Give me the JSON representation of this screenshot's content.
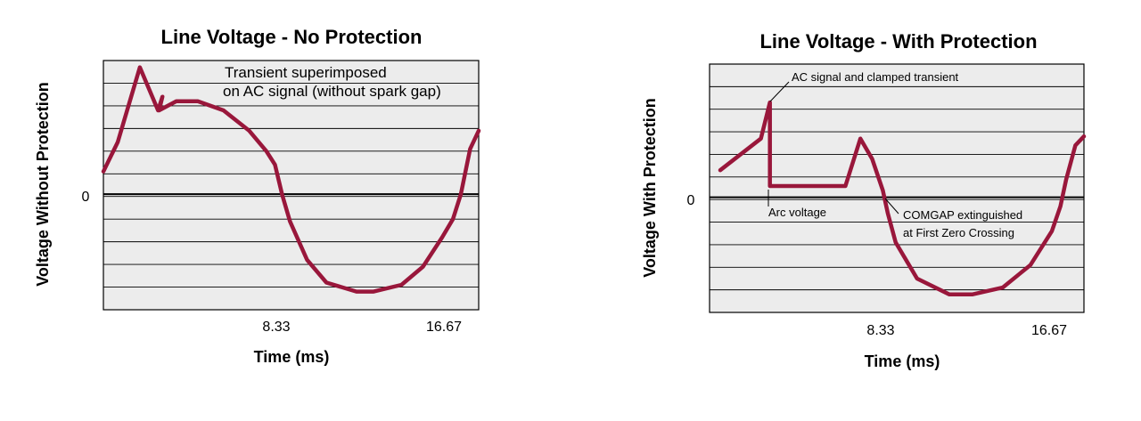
{
  "colors": {
    "series": "#99173b",
    "plot_bg": "#ececec",
    "grid": "#000000"
  },
  "chart_data": [
    {
      "type": "line",
      "title": "Line Voltage - No Protection",
      "xlabel": "Time (ms)",
      "ylabel": "Voltage Without Protection",
      "xlim": [
        0,
        17.5
      ],
      "ylim": [
        -5.1,
        5.9
      ],
      "grid": true,
      "y_tick_labels": [
        {
          "value": 0,
          "label": "0"
        }
      ],
      "x_tick_labels": [
        {
          "value": 8.33,
          "label": "8.33"
        },
        {
          "value": 16.67,
          "label": "16.67"
        }
      ],
      "annotations": [
        {
          "lines": [
            "Transient superimposed",
            "on AC signal (without spark gap)"
          ]
        }
      ],
      "series": [
        {
          "x": [
            0,
            0.67,
            1.7,
            2.55,
            2.75,
            2.6,
            3.4,
            4.4,
            5.6,
            6.8,
            7.6,
            8.0,
            8.33,
            8.7,
            9.5,
            10.4,
            11.8,
            12.6,
            13.9,
            14.9,
            15.8,
            16.3,
            16.67,
            17.1,
            17.5
          ],
          "y": [
            1.0,
            2.3,
            5.6,
            3.7,
            4.3,
            3.7,
            4.1,
            4.1,
            3.7,
            2.8,
            1.9,
            1.3,
            0,
            -1.2,
            -2.9,
            -3.9,
            -4.3,
            -4.3,
            -4.0,
            -3.2,
            -1.9,
            -1.1,
            0,
            2.0,
            2.8
          ]
        }
      ]
    },
    {
      "type": "line",
      "title": "Line Voltage - With Protection",
      "xlabel": "Time (ms)",
      "ylabel": "Voltage With Protection",
      "xlim": [
        0,
        17.5
      ],
      "ylim": [
        -5.1,
        5.9
      ],
      "grid": true,
      "y_tick_labels": [
        {
          "value": 0,
          "label": "0"
        }
      ],
      "x_tick_labels": [
        {
          "value": 8.33,
          "label": "8.33"
        },
        {
          "value": 16.67,
          "label": "16.67"
        }
      ],
      "annotations": [
        {
          "lines": [
            "AC signal and clamped transient"
          ]
        },
        {
          "lines": [
            "Arc voltage"
          ]
        },
        {
          "lines": [
            "COMGAP extinguished",
            "at First Zero Crossing"
          ]
        }
      ],
      "series": [
        {
          "x": [
            0.5,
            2.4,
            2.82,
            2.82,
            6.35,
            7.05,
            7.6,
            8.1,
            8.33,
            8.7,
            9.7,
            11.2,
            12.3,
            13.7,
            15.0,
            16.0,
            16.4,
            16.67,
            17.1,
            17.5
          ],
          "y": [
            1.2,
            2.6,
            4.2,
            0.5,
            0.5,
            2.6,
            1.7,
            0.3,
            -0.7,
            -2.0,
            -3.6,
            -4.3,
            -4.3,
            -4.0,
            -3.0,
            -1.5,
            -0.4,
            0.8,
            2.3,
            2.7
          ]
        }
      ]
    }
  ]
}
